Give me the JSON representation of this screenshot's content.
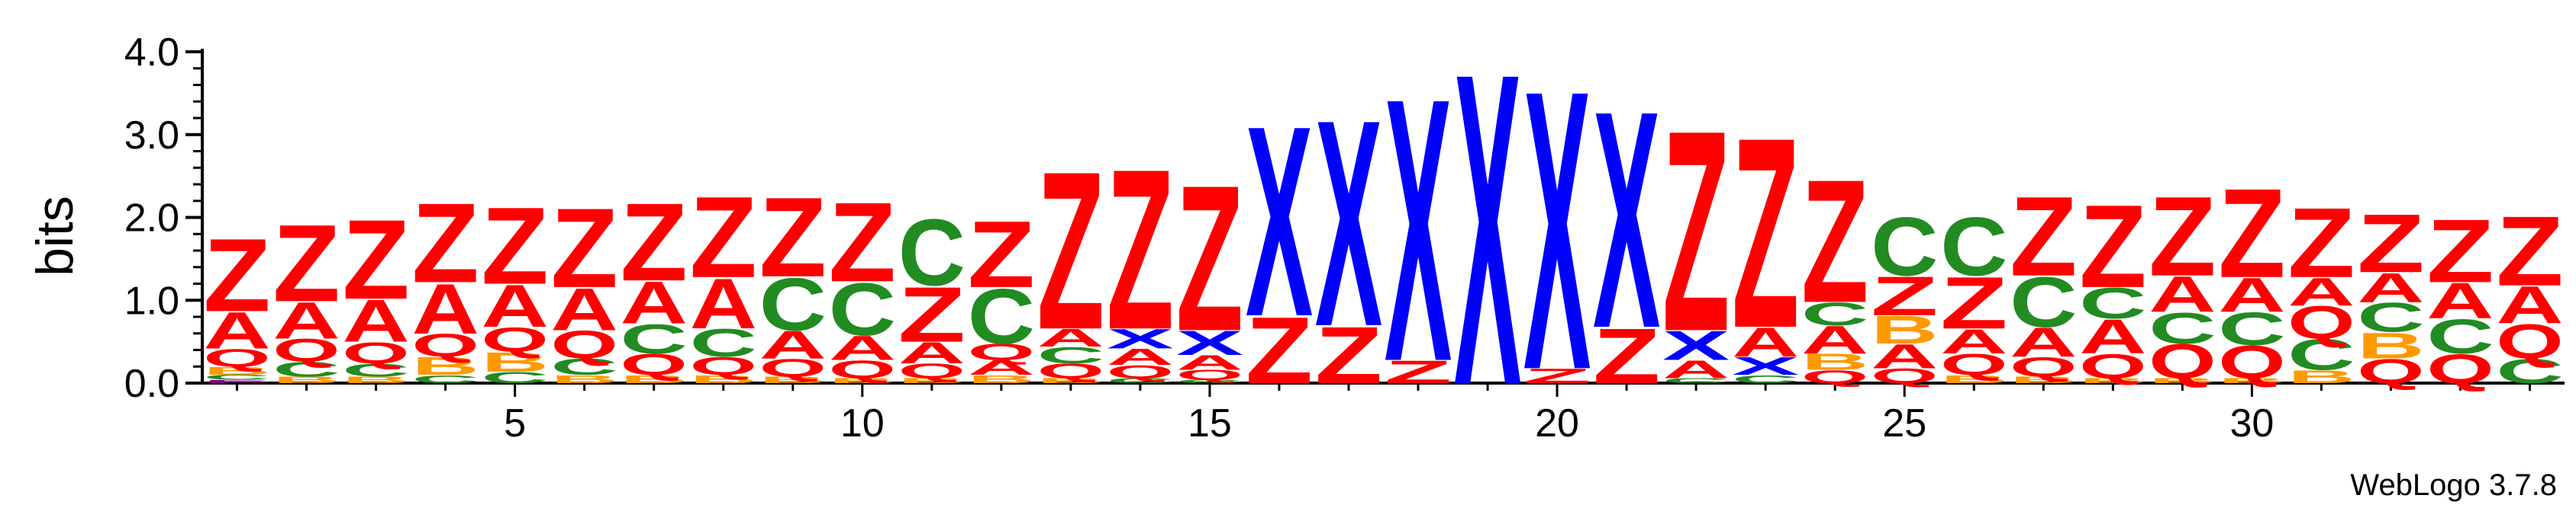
{
  "footer": {
    "credit": "WebLogo 3.7.8"
  },
  "colors": {
    "Z": "#FF0000",
    "A": "#FF0000",
    "Q": "#FF0000",
    "X": "#0000FF",
    "C": "#228B22",
    "B": "#FF9900",
    "E": "#800080"
  },
  "chart_data": {
    "type": "sequence-logo",
    "title": "",
    "xlabel": "",
    "ylabel": "bits",
    "ylim": [
      0,
      4.0
    ],
    "xlim": [
      1,
      34
    ],
    "y_ticks": [
      "0.0",
      "1.0",
      "2.0",
      "3.0",
      "4.0"
    ],
    "x_ticks": [
      "5",
      "10",
      "15",
      "20",
      "25",
      "30"
    ],
    "x_tick_positions": [
      5,
      10,
      15,
      20,
      25,
      30
    ],
    "positions": [
      {
        "pos": 1,
        "letters": [
          {
            "l": "E",
            "v": 0.04
          },
          {
            "l": "C",
            "v": 0.06
          },
          {
            "l": "B",
            "v": 0.1
          },
          {
            "l": "Q",
            "v": 0.22
          },
          {
            "l": "A",
            "v": 0.45
          },
          {
            "l": "Z",
            "v": 0.9
          }
        ]
      },
      {
        "pos": 2,
        "letters": [
          {
            "l": "B",
            "v": 0.08
          },
          {
            "l": "C",
            "v": 0.18
          },
          {
            "l": "Q",
            "v": 0.28
          },
          {
            "l": "A",
            "v": 0.45
          },
          {
            "l": "Z",
            "v": 0.95
          }
        ]
      },
      {
        "pos": 3,
        "letters": [
          {
            "l": "B",
            "v": 0.08
          },
          {
            "l": "C",
            "v": 0.16
          },
          {
            "l": "Q",
            "v": 0.26
          },
          {
            "l": "A",
            "v": 0.52
          },
          {
            "l": "Z",
            "v": 0.98
          }
        ]
      },
      {
        "pos": 4,
        "letters": [
          {
            "l": "C",
            "v": 0.1
          },
          {
            "l": "B",
            "v": 0.22
          },
          {
            "l": "Q",
            "v": 0.28
          },
          {
            "l": "A",
            "v": 0.62
          },
          {
            "l": "Z",
            "v": 0.98
          }
        ]
      },
      {
        "pos": 5,
        "letters": [
          {
            "l": "C",
            "v": 0.14
          },
          {
            "l": "B",
            "v": 0.24
          },
          {
            "l": "Q",
            "v": 0.3
          },
          {
            "l": "A",
            "v": 0.52
          },
          {
            "l": "Z",
            "v": 0.95
          }
        ]
      },
      {
        "pos": 6,
        "letters": [
          {
            "l": "B",
            "v": 0.1
          },
          {
            "l": "C",
            "v": 0.2
          },
          {
            "l": "Q",
            "v": 0.34
          },
          {
            "l": "A",
            "v": 0.52
          },
          {
            "l": "Z",
            "v": 0.98
          }
        ]
      },
      {
        "pos": 7,
        "letters": [
          {
            "l": "B",
            "v": 0.1
          },
          {
            "l": "Q",
            "v": 0.26
          },
          {
            "l": "C",
            "v": 0.36
          },
          {
            "l": "A",
            "v": 0.52
          },
          {
            "l": "Z",
            "v": 0.96
          }
        ]
      },
      {
        "pos": 8,
        "letters": [
          {
            "l": "B",
            "v": 0.1
          },
          {
            "l": "Q",
            "v": 0.22
          },
          {
            "l": "C",
            "v": 0.34
          },
          {
            "l": "A",
            "v": 0.62
          },
          {
            "l": "Z",
            "v": 1.0
          }
        ]
      },
      {
        "pos": 9,
        "letters": [
          {
            "l": "B",
            "v": 0.08
          },
          {
            "l": "Q",
            "v": 0.22
          },
          {
            "l": "A",
            "v": 0.34
          },
          {
            "l": "C",
            "v": 0.65
          },
          {
            "l": "Z",
            "v": 0.98
          }
        ]
      },
      {
        "pos": 10,
        "letters": [
          {
            "l": "B",
            "v": 0.06
          },
          {
            "l": "Q",
            "v": 0.22
          },
          {
            "l": "A",
            "v": 0.3
          },
          {
            "l": "C",
            "v": 0.65
          },
          {
            "l": "Z",
            "v": 0.98
          }
        ]
      },
      {
        "pos": 11,
        "letters": [
          {
            "l": "B",
            "v": 0.06
          },
          {
            "l": "Q",
            "v": 0.18
          },
          {
            "l": "A",
            "v": 0.26
          },
          {
            "l": "Z",
            "v": 0.68
          },
          {
            "l": "C",
            "v": 0.82
          }
        ]
      },
      {
        "pos": 12,
        "letters": [
          {
            "l": "B",
            "v": 0.1
          },
          {
            "l": "A",
            "v": 0.18
          },
          {
            "l": "Q",
            "v": 0.2
          },
          {
            "l": "C",
            "v": 0.68
          },
          {
            "l": "Z",
            "v": 0.82
          }
        ]
      },
      {
        "pos": 13,
        "letters": [
          {
            "l": "B",
            "v": 0.06
          },
          {
            "l": "Q",
            "v": 0.18
          },
          {
            "l": "C",
            "v": 0.2
          },
          {
            "l": "A",
            "v": 0.22
          },
          {
            "l": "Z",
            "v": 1.95
          }
        ]
      },
      {
        "pos": 14,
        "letters": [
          {
            "l": "C",
            "v": 0.06
          },
          {
            "l": "Q",
            "v": 0.16
          },
          {
            "l": "A",
            "v": 0.2
          },
          {
            "l": "X",
            "v": 0.24
          },
          {
            "l": "Z",
            "v": 1.98
          }
        ]
      },
      {
        "pos": 15,
        "letters": [
          {
            "l": "C",
            "v": 0.04
          },
          {
            "l": "Q",
            "v": 0.12
          },
          {
            "l": "A",
            "v": 0.18
          },
          {
            "l": "X",
            "v": 0.3
          },
          {
            "l": "Z",
            "v": 1.8
          }
        ]
      },
      {
        "pos": 16,
        "letters": [
          {
            "l": "Z",
            "v": 0.82
          },
          {
            "l": "X",
            "v": 2.35
          }
        ]
      },
      {
        "pos": 17,
        "letters": [
          {
            "l": "Z",
            "v": 0.7
          },
          {
            "l": "X",
            "v": 2.55
          }
        ]
      },
      {
        "pos": 18,
        "letters": [
          {
            "l": "Z",
            "v": 0.28
          },
          {
            "l": "X",
            "v": 3.25
          }
        ]
      },
      {
        "pos": 19,
        "letters": [
          {
            "l": "X",
            "v": 3.85
          }
        ]
      },
      {
        "pos": 20,
        "letters": [
          {
            "l": "Z",
            "v": 0.18
          },
          {
            "l": "X",
            "v": 3.45
          }
        ]
      },
      {
        "pos": 21,
        "letters": [
          {
            "l": "Z",
            "v": 0.68
          },
          {
            "l": "X",
            "v": 2.68
          }
        ]
      },
      {
        "pos": 22,
        "letters": [
          {
            "l": "C",
            "v": 0.06
          },
          {
            "l": "A",
            "v": 0.22
          },
          {
            "l": "X",
            "v": 0.36
          },
          {
            "l": "Z",
            "v": 2.48
          }
        ]
      },
      {
        "pos": 23,
        "letters": [
          {
            "l": "C",
            "v": 0.1
          },
          {
            "l": "X",
            "v": 0.22
          },
          {
            "l": "A",
            "v": 0.36
          },
          {
            "l": "Z",
            "v": 2.35
          }
        ]
      },
      {
        "pos": 24,
        "letters": [
          {
            "l": "Q",
            "v": 0.16
          },
          {
            "l": "B",
            "v": 0.2
          },
          {
            "l": "A",
            "v": 0.34
          },
          {
            "l": "C",
            "v": 0.28
          },
          {
            "l": "Z",
            "v": 1.52
          }
        ]
      },
      {
        "pos": 25,
        "letters": [
          {
            "l": "Q",
            "v": 0.18
          },
          {
            "l": "A",
            "v": 0.3
          },
          {
            "l": "B",
            "v": 0.34
          },
          {
            "l": "Z",
            "v": 0.48
          },
          {
            "l": "C",
            "v": 0.72
          }
        ]
      },
      {
        "pos": 26,
        "letters": [
          {
            "l": "B",
            "v": 0.1
          },
          {
            "l": "Q",
            "v": 0.26
          },
          {
            "l": "A",
            "v": 0.3
          },
          {
            "l": "Z",
            "v": 0.64
          },
          {
            "l": "C",
            "v": 0.72
          }
        ]
      },
      {
        "pos": 27,
        "letters": [
          {
            "l": "B",
            "v": 0.08
          },
          {
            "l": "Q",
            "v": 0.24
          },
          {
            "l": "A",
            "v": 0.36
          },
          {
            "l": "C",
            "v": 0.62
          },
          {
            "l": "Z",
            "v": 0.98
          }
        ]
      },
      {
        "pos": 28,
        "letters": [
          {
            "l": "B",
            "v": 0.06
          },
          {
            "l": "Q",
            "v": 0.3
          },
          {
            "l": "A",
            "v": 0.42
          },
          {
            "l": "C",
            "v": 0.38
          },
          {
            "l": "Z",
            "v": 1.02
          }
        ]
      },
      {
        "pos": 29,
        "letters": [
          {
            "l": "B",
            "v": 0.06
          },
          {
            "l": "Q",
            "v": 0.42
          },
          {
            "l": "C",
            "v": 0.38
          },
          {
            "l": "A",
            "v": 0.44
          },
          {
            "l": "Z",
            "v": 0.98
          }
        ]
      },
      {
        "pos": 30,
        "letters": [
          {
            "l": "B",
            "v": 0.06
          },
          {
            "l": "Q",
            "v": 0.4
          },
          {
            "l": "C",
            "v": 0.4
          },
          {
            "l": "A",
            "v": 0.42
          },
          {
            "l": "Z",
            "v": 1.1
          }
        ]
      },
      {
        "pos": 31,
        "letters": [
          {
            "l": "B",
            "v": 0.16
          },
          {
            "l": "C",
            "v": 0.38
          },
          {
            "l": "Q",
            "v": 0.4
          },
          {
            "l": "A",
            "v": 0.34
          },
          {
            "l": "Z",
            "v": 0.86
          }
        ]
      },
      {
        "pos": 32,
        "letters": [
          {
            "l": "Q",
            "v": 0.3
          },
          {
            "l": "B",
            "v": 0.32
          },
          {
            "l": "C",
            "v": 0.36
          },
          {
            "l": "A",
            "v": 0.36
          },
          {
            "l": "Z",
            "v": 0.72
          }
        ]
      },
      {
        "pos": 33,
        "letters": [
          {
            "l": "Q",
            "v": 0.36
          },
          {
            "l": "C",
            "v": 0.42
          },
          {
            "l": "A",
            "v": 0.44
          },
          {
            "l": "Z",
            "v": 0.78
          }
        ]
      },
      {
        "pos": 34,
        "letters": [
          {
            "l": "C",
            "v": 0.3
          },
          {
            "l": "Q",
            "v": 0.42
          },
          {
            "l": "A",
            "v": 0.46
          },
          {
            "l": "Z",
            "v": 0.86
          }
        ]
      }
    ]
  }
}
